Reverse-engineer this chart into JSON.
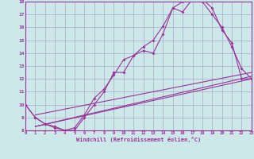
{
  "background_color": "#cce8e8",
  "grid_color": "#aaaacc",
  "line_color": "#993399",
  "xlabel": "Windchill (Refroidissement éolien,°C)",
  "xlim": [
    0,
    23
  ],
  "ylim": [
    8,
    18
  ],
  "yticks": [
    8,
    9,
    10,
    11,
    12,
    13,
    14,
    15,
    16,
    17,
    18
  ],
  "xticks": [
    0,
    1,
    2,
    3,
    4,
    5,
    6,
    7,
    8,
    9,
    10,
    11,
    12,
    13,
    14,
    15,
    16,
    17,
    18,
    19,
    20,
    21,
    22,
    23
  ],
  "curve1_x": [
    0,
    1,
    2,
    3,
    4,
    5,
    6,
    7,
    8,
    9,
    10,
    11,
    12,
    13,
    14,
    15,
    16,
    17,
    18,
    19,
    20,
    21,
    22,
    23
  ],
  "curve1_y": [
    10.0,
    9.0,
    8.5,
    8.3,
    8.0,
    8.2,
    9.2,
    10.5,
    11.2,
    12.3,
    13.5,
    13.8,
    14.5,
    15.0,
    16.1,
    17.5,
    18.0,
    18.2,
    18.0,
    17.0,
    16.0,
    14.5,
    12.8,
    12.0
  ],
  "curve2_x": [
    0,
    1,
    2,
    3,
    4,
    5,
    6,
    7,
    8,
    9,
    10,
    11,
    12,
    13,
    14,
    15,
    16,
    17,
    18,
    19,
    20,
    21,
    22,
    23
  ],
  "curve2_y": [
    10.0,
    9.0,
    8.5,
    8.2,
    8.0,
    8.0,
    9.0,
    10.0,
    11.0,
    12.5,
    12.5,
    13.8,
    14.2,
    14.0,
    15.5,
    17.5,
    17.2,
    18.2,
    18.2,
    17.5,
    15.8,
    14.8,
    12.0,
    12.0
  ],
  "line1_x": [
    1,
    23
  ],
  "line1_y": [
    8.3,
    12.2
  ],
  "line2_x": [
    1,
    23
  ],
  "line2_y": [
    8.3,
    12.0
  ],
  "line3_x": [
    1,
    23
  ],
  "line3_y": [
    9.2,
    12.5
  ]
}
